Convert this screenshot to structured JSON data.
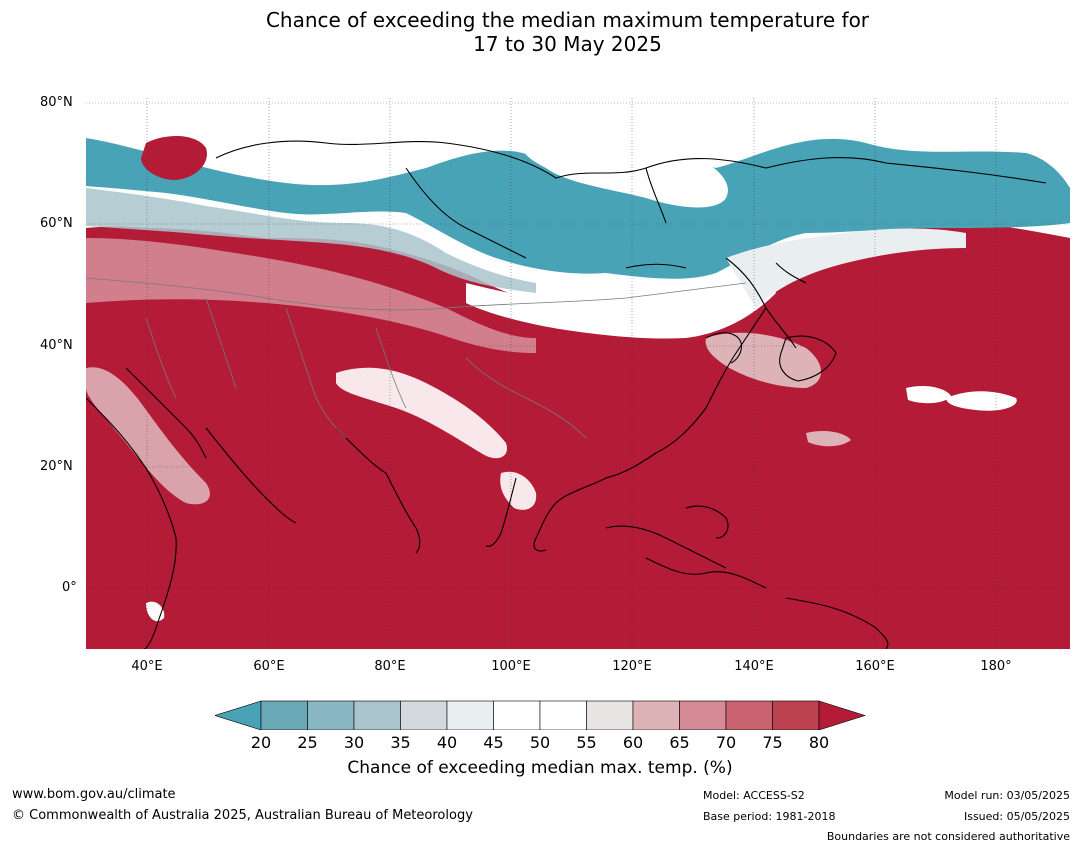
{
  "title_line1": "Chance of exceeding the median maximum temperature for",
  "title_line2": "17 to 30 May 2025",
  "map": {
    "lat_labels": [
      "80°N",
      "60°N",
      "40°N",
      "20°N",
      "0°"
    ],
    "lon_labels": [
      "40°E",
      "60°E",
      "80°E",
      "100°E",
      "120°E",
      "140°E",
      "160°E",
      "180°"
    ],
    "extent": {
      "lon": [
        30,
        192
      ],
      "lat": [
        -10,
        80
      ]
    }
  },
  "colorbar": {
    "ticks": [
      "20",
      "25",
      "30",
      "35",
      "40",
      "45",
      "50",
      "55",
      "60",
      "65",
      "70",
      "75",
      "80"
    ],
    "colors": [
      "#49a3b7",
      "#6aa9b6",
      "#88b7c3",
      "#a9c5cb",
      "#d2dadd",
      "#e9eef0",
      "#ffffff",
      "#ffffff",
      "#e9e4e4",
      "#deb3b8",
      "#d48b96",
      "#c9636f",
      "#bd4250",
      "#b31b37"
    ],
    "label": "Chance of exceeding median max. temp. (%)"
  },
  "footer": {
    "website": "www.bom.gov.au/climate",
    "copyright": "© Commonwealth of Australia 2025, Australian Bureau of Meteorology",
    "model": "Model: ACCESS-S2",
    "base_period": "Base period: 1981-2018",
    "model_run": "Model run: 03/05/2025",
    "issued": "Issued: 05/05/2025",
    "boundaries": "Boundaries are not considered authoritative"
  }
}
